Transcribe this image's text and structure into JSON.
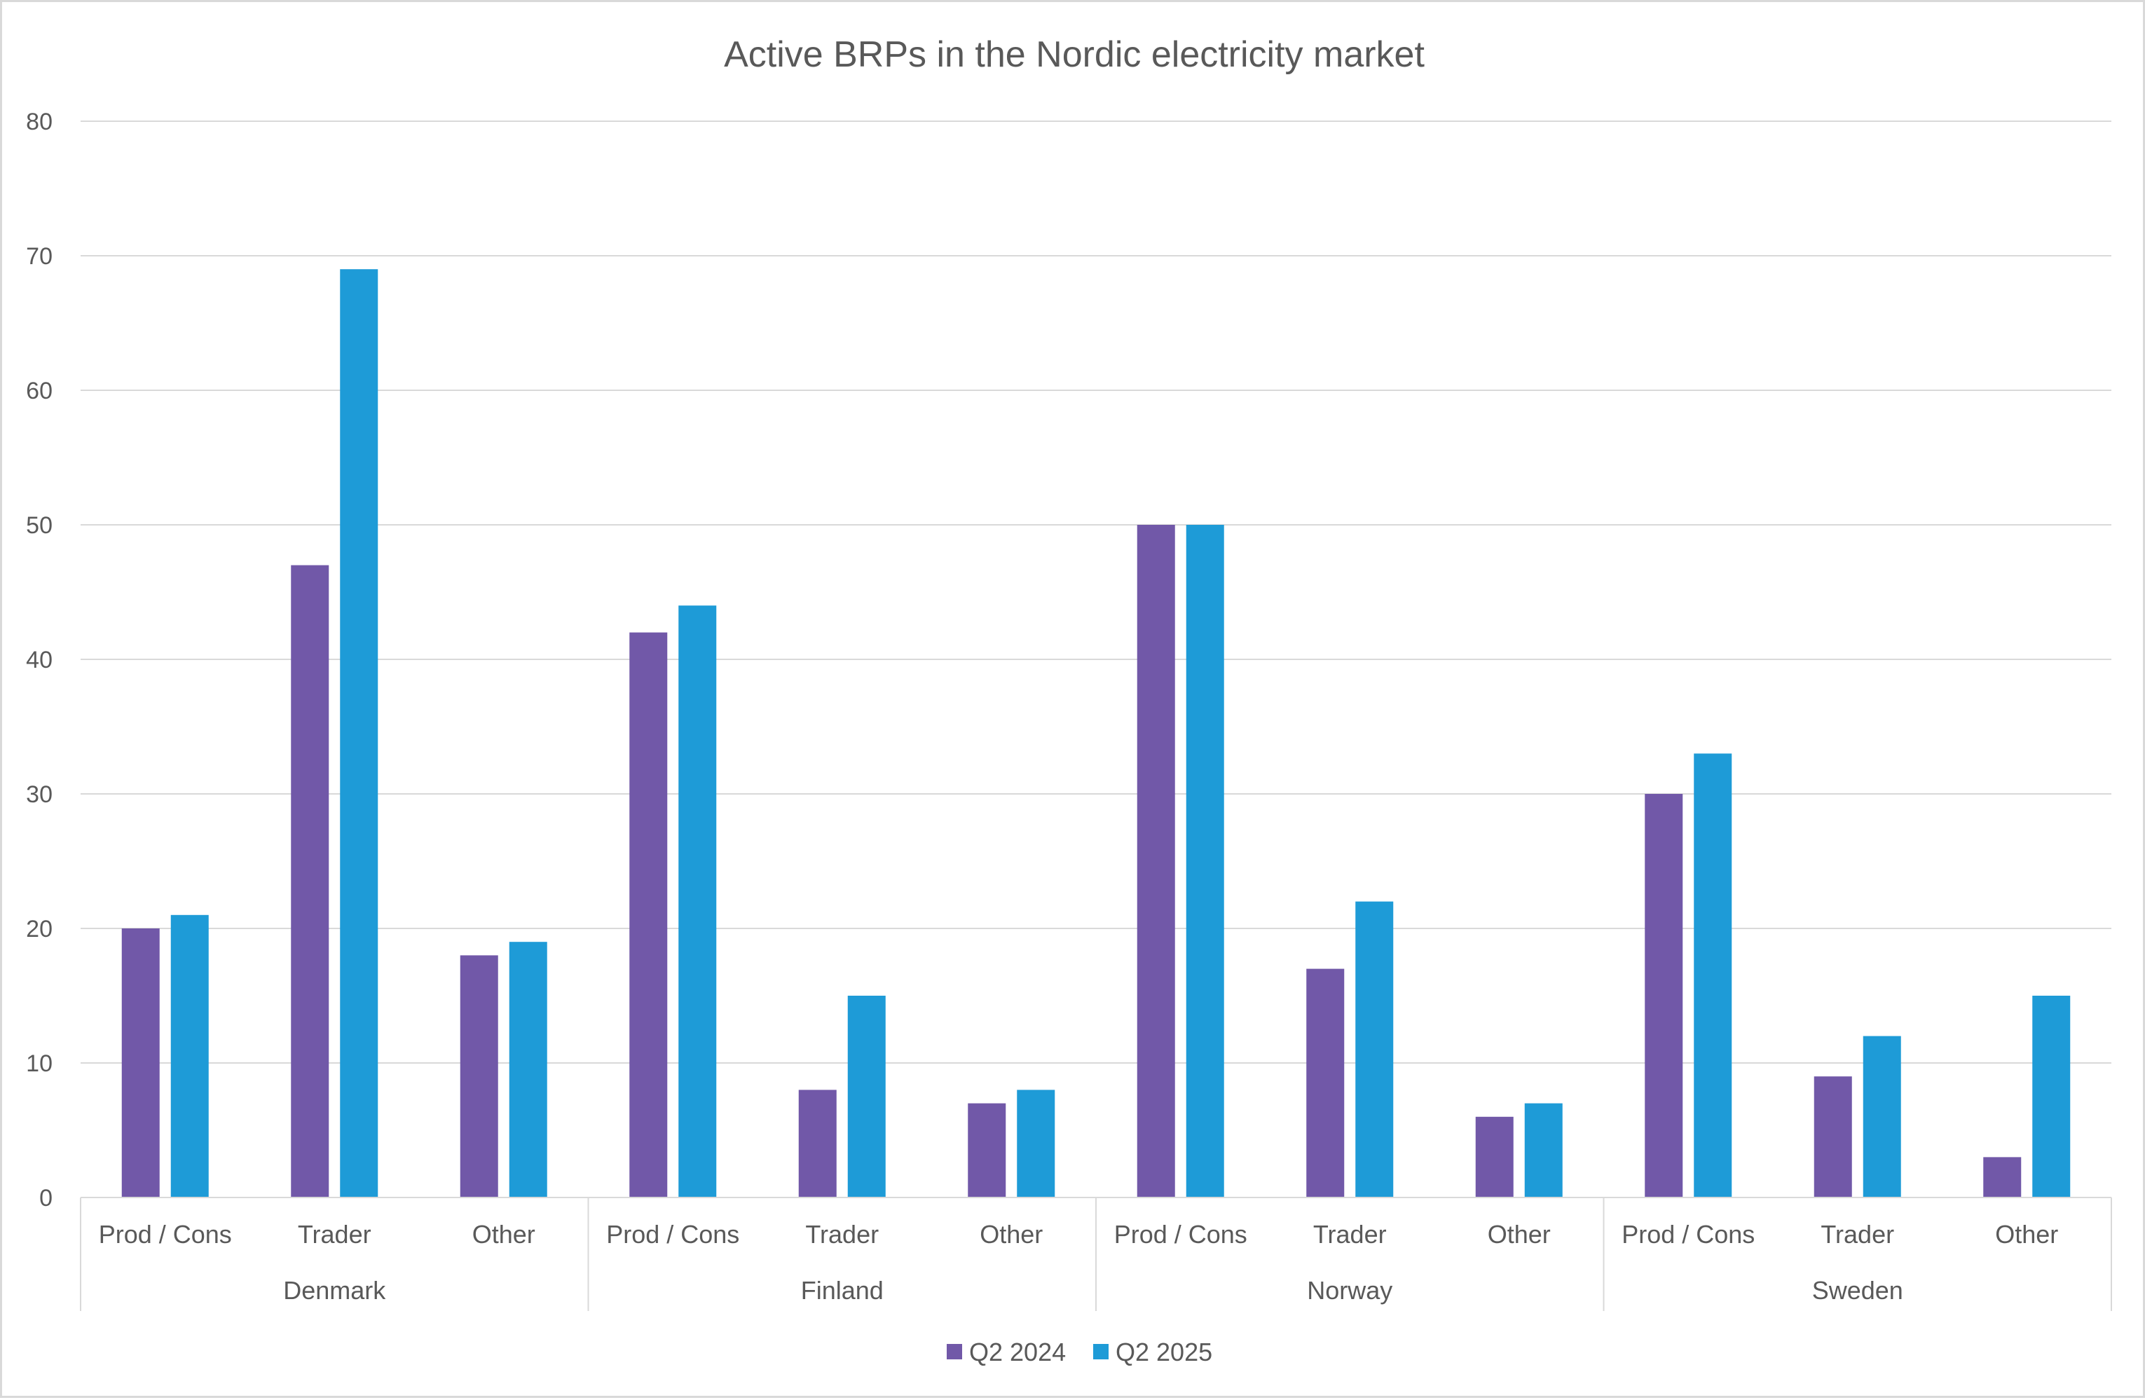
{
  "chart_data": {
    "type": "bar",
    "title": "Active BRPs in the Nordic electricity market",
    "xlabel": "",
    "ylabel": "",
    "ylim": [
      0,
      80
    ],
    "yticks": [
      0,
      10,
      20,
      30,
      40,
      50,
      60,
      70,
      80
    ],
    "grid": true,
    "legend_position": "bottom",
    "groups": [
      {
        "name": "Denmark",
        "categories": [
          "Prod / Cons",
          "Trader",
          "Other"
        ]
      },
      {
        "name": "Finland",
        "categories": [
          "Prod / Cons",
          "Trader",
          "Other"
        ]
      },
      {
        "name": "Norway",
        "categories": [
          "Prod / Cons",
          "Trader",
          "Other"
        ]
      },
      {
        "name": "Sweden",
        "categories": [
          "Prod / Cons",
          "Trader",
          "Other"
        ]
      }
    ],
    "series": [
      {
        "name": "Q2 2024",
        "color": "#7158a8",
        "values": [
          20,
          47,
          18,
          42,
          8,
          7,
          50,
          17,
          6,
          30,
          9,
          3
        ]
      },
      {
        "name": "Q2 2025",
        "color": "#1e9bd7",
        "values": [
          21,
          69,
          19,
          44,
          15,
          8,
          50,
          22,
          7,
          33,
          12,
          15
        ]
      }
    ]
  }
}
